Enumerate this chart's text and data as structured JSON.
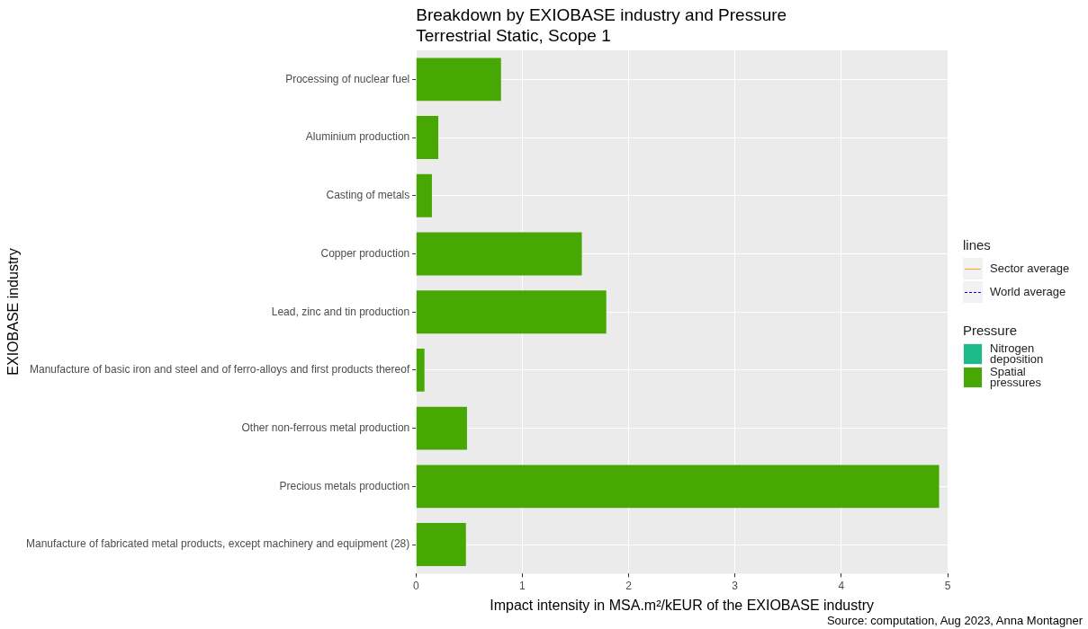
{
  "chart_data": {
    "type": "bar",
    "orientation": "horizontal",
    "title": "Breakdown by EXIOBASE industry and Pressure",
    "subtitle": "Terrestrial Static, Scope 1",
    "xlabel": "Impact intensity in MSA.m²/kEUR of the EXIOBASE industry",
    "ylabel": "EXIOBASE industry",
    "legend_title": [
      "lines",
      "Pressure"
    ],
    "categories": [
      "Processing of nuclear fuel",
      "Aluminium production",
      "Casting of metals",
      "Copper production",
      "Lead, zinc and tin production",
      "Manufacture of basic iron and steel and of ferro-alloys and first products thereof",
      "Other non-ferrous metal production",
      "Precious metals production",
      "Manufacture of fabricated metal products, except machinery and equipment (28)"
    ],
    "series": [
      {
        "name": "Sector average",
        "type": "line",
        "color": "#f5a623",
        "line_style": "solid",
        "values": [
          null,
          null,
          null,
          null,
          null,
          null,
          null,
          null,
          null
        ]
      },
      {
        "name": "World average",
        "type": "line",
        "color": "#0000ff",
        "line_style": "dashed",
        "values": [
          null,
          null,
          null,
          null,
          null,
          null,
          null,
          null,
          null
        ]
      },
      {
        "name": "Nitrogen deposition",
        "color": "#1dba8a",
        "values": [
          null,
          null,
          null,
          null,
          null,
          null,
          null,
          null,
          null
        ]
      },
      {
        "name": "Spatial pressures",
        "color": "#47a804",
        "values": [
          0.8,
          0.21,
          0.15,
          1.56,
          1.79,
          0.08,
          0.48,
          4.92,
          0.47
        ]
      }
    ],
    "xlim": [
      0,
      5
    ],
    "xticks": [
      0,
      1,
      2,
      3,
      4,
      5
    ],
    "grid": true,
    "legend": "right",
    "annotations": [
      "Source: computation, Aug 2023, Anna Montagner"
    ]
  }
}
